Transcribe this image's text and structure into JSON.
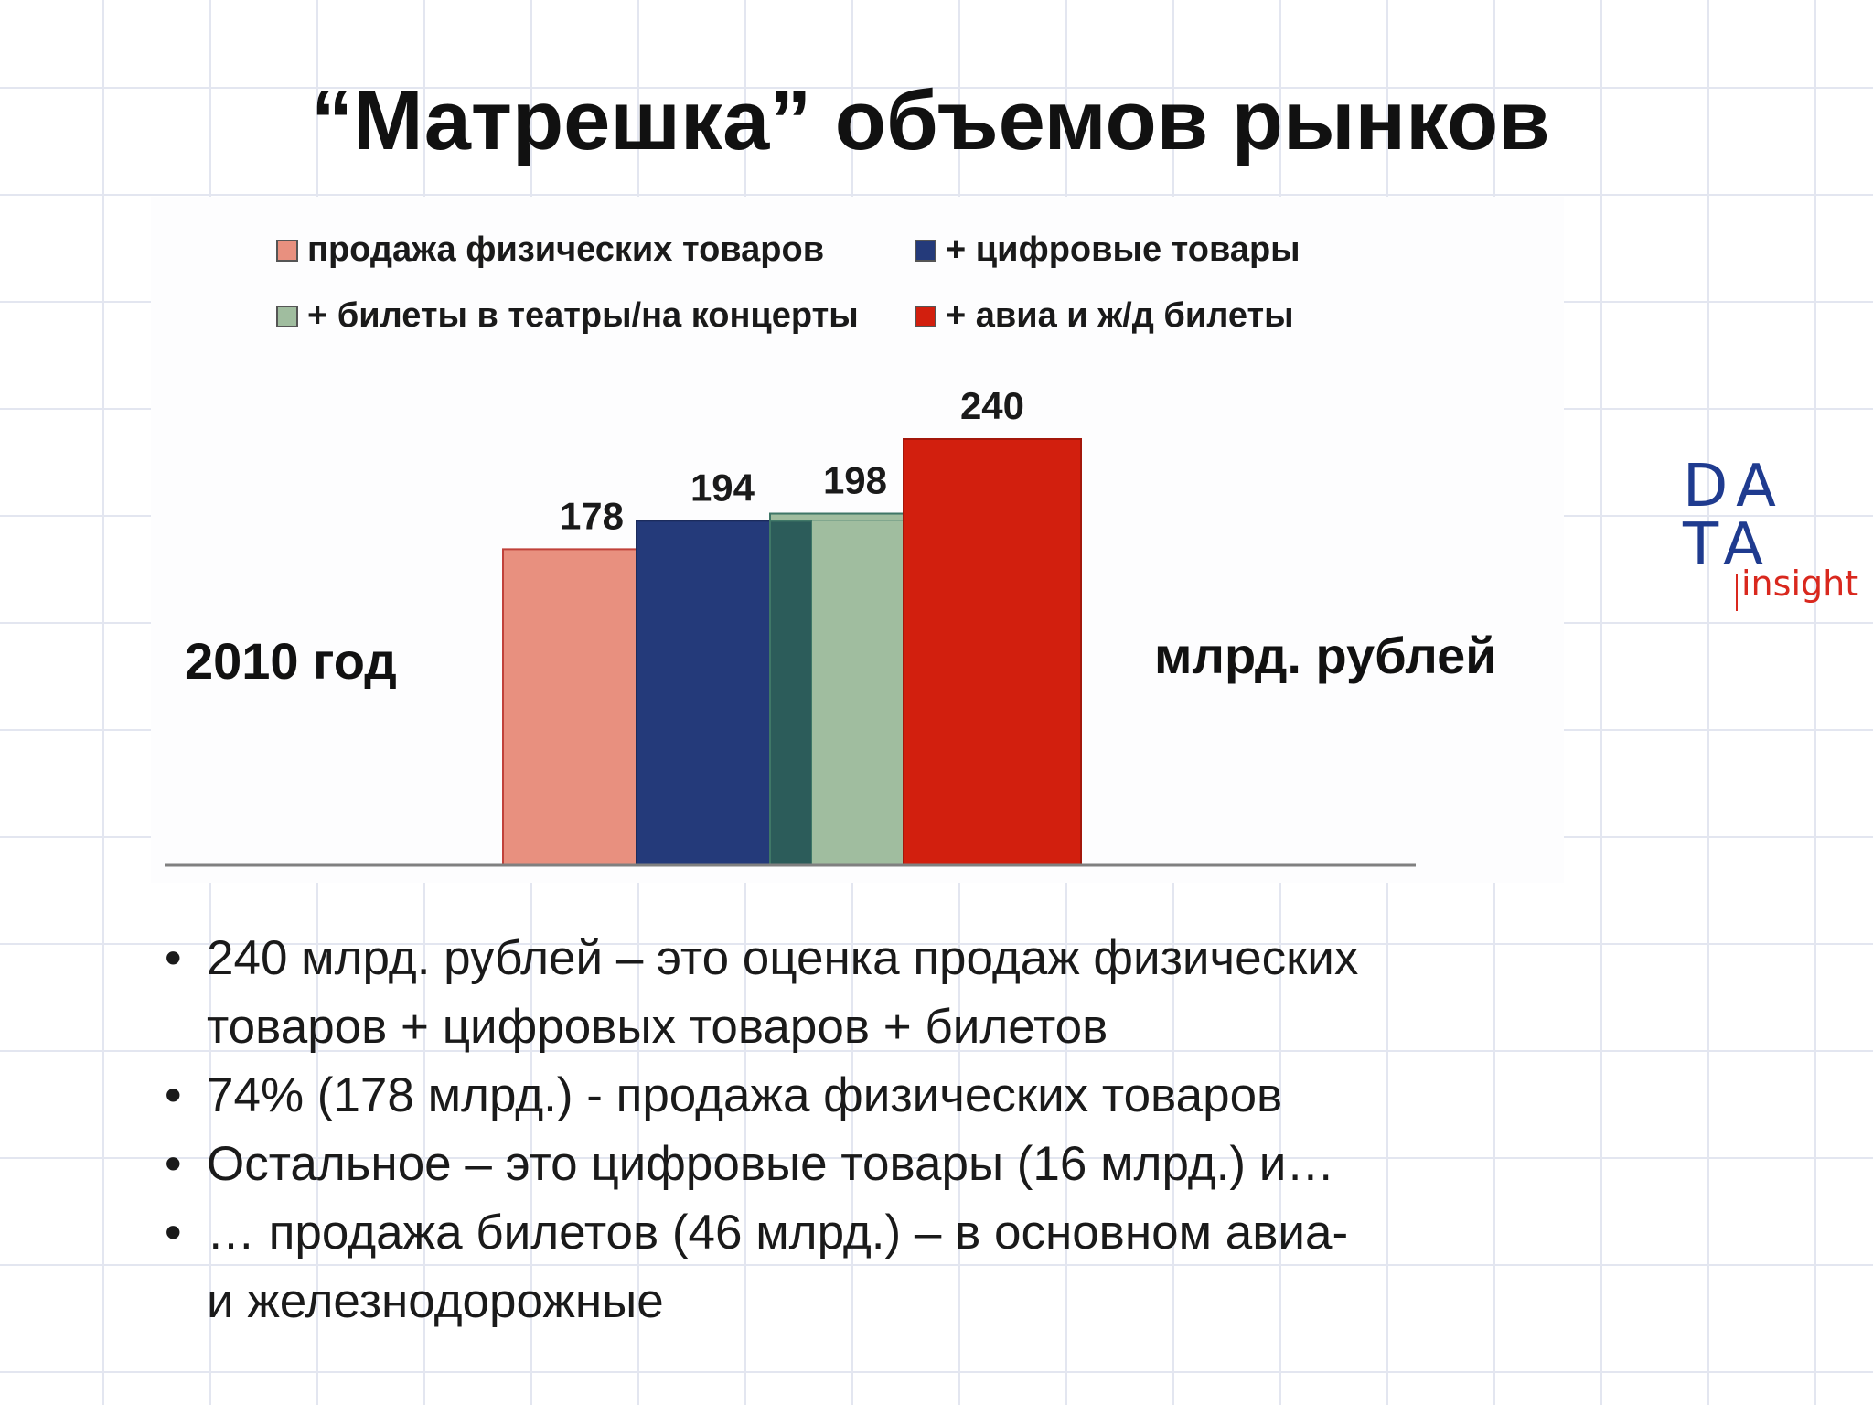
{
  "title": "“Матрешка” объемов рынков",
  "colors": {
    "physical_fill": "#e8907f",
    "physical_stroke": "#c0413a",
    "digital_fill": "#243a7a",
    "digital_stroke": "#1b2b5c",
    "tickets_fill": "#a0bd9f",
    "tickets_overlap": "#2c5c5a",
    "tickets_stroke": "#3f7767",
    "transport_fill": "#d21f0e",
    "transport_stroke": "#a3170b",
    "axis": "#808080",
    "logo_blue": "#1f3b8f",
    "logo_red": "#d9281e"
  },
  "legend": [
    {
      "label": "продажа физических товаров",
      "color": "#e8907f"
    },
    {
      "label": "+ цифровые товары",
      "color": "#243a7a"
    },
    {
      "label": "+ билеты в театры/на концерты",
      "color": "#a0bd9f"
    },
    {
      "label": "+ авиа и ж/д билеты",
      "color": "#d21f0e"
    }
  ],
  "left_label": "2010 год",
  "right_label": "млрд. рублей",
  "chart_data": {
    "type": "bar",
    "title": "“Матрешка” объемов рынков",
    "categories": [
      "2010 год"
    ],
    "series": [
      {
        "name": "продажа физических товаров",
        "values": [
          178
        ],
        "data_label": "178"
      },
      {
        "name": "+ цифровые товары",
        "values": [
          194
        ],
        "data_label": "194"
      },
      {
        "name": "+ билеты в театры/на концерты",
        "values": [
          198
        ],
        "data_label": "198"
      },
      {
        "name": "+ авиа и ж/д билеты",
        "values": [
          240
        ],
        "data_label": "240"
      }
    ],
    "ylabel": "млрд. рублей",
    "ylim": [
      0,
      240
    ],
    "grid": false,
    "legend_position": "top"
  },
  "bullets": [
    [
      "240 млрд. рублей – это оценка продаж физических",
      "товаров + цифровых товаров + билетов"
    ],
    [
      "74% (178 млрд.) - продажа физических товаров"
    ],
    [
      "Остальное – это цифровые товары (16 млрд.) и…"
    ],
    [
      "… продажа билетов (46 млрд.) – в основном авиа-",
      "и железнодорожные"
    ]
  ],
  "bullet_symbol": "•",
  "logo": {
    "line1": "DA",
    "line2": "TA",
    "line3": "insight"
  }
}
